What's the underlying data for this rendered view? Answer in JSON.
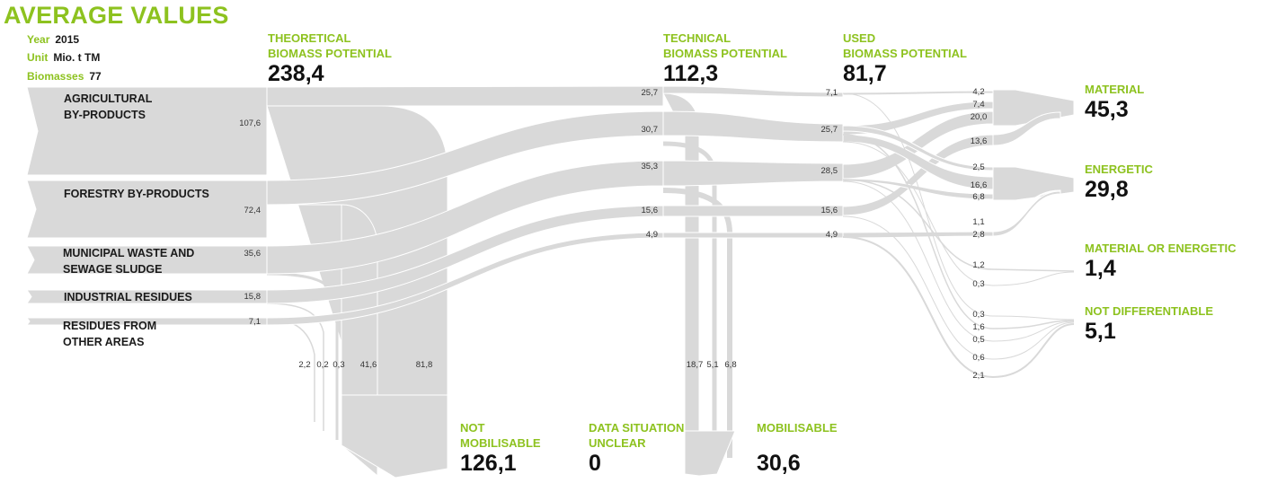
{
  "header": {
    "title": "AVERAGE VALUES",
    "year_key": "Year",
    "year_value": "2015",
    "unit_key": "Unit",
    "unit_value": "Mio. t TM",
    "biomasses_key": "Biomasses",
    "biomasses_value": "77"
  },
  "stages": {
    "theoretical": {
      "line1": "THEORETICAL",
      "line2": "BIOMASS POTENTIAL",
      "value": "238,4"
    },
    "technical": {
      "line1": "TECHNICAL",
      "line2": "BIOMASS POTENTIAL",
      "value": "112,3"
    },
    "used": {
      "line1": "USED",
      "line2": "BIOMASS POTENTIAL",
      "value": "81,7"
    }
  },
  "sources": [
    {
      "line1": "AGRICULTURAL",
      "line2": "BY-PRODUCTS",
      "value": "107,6"
    },
    {
      "line1": "FORESTRY BY-PRODUCTS",
      "line2": "",
      "value": "72,4"
    },
    {
      "line1": "MUNICIPAL WASTE AND",
      "line2": "SEWAGE SLUDGE",
      "value": "35,6"
    },
    {
      "line1": "INDUSTRIAL RESIDUES",
      "line2": "",
      "value": "15,8"
    },
    {
      "line1": "RESIDUES FROM",
      "line2": "OTHER AREAS",
      "value": "7,1"
    }
  ],
  "technical_values": [
    "25,7",
    "30,7",
    "35,3",
    "15,6",
    "4,9"
  ],
  "used_values": [
    "7,1",
    "25,7",
    "28,5",
    "15,6",
    "4,9"
  ],
  "not_mobilisable_values": [
    "2,2",
    "0,2",
    "0,3",
    "41,6",
    "81,8"
  ],
  "mobilisable_values": [
    "18,7",
    "5,1",
    "6,8"
  ],
  "outputs": {
    "material": {
      "label": "MATERIAL",
      "value": "45,3"
    },
    "energetic": {
      "label": "ENERGETIC",
      "value": "29,8"
    },
    "material_or_energetic": {
      "label": "MATERIAL OR ENERGETIC",
      "value": "1,4"
    },
    "not_differentiable": {
      "label": "NOT DIFFERENTIABLE",
      "value": "5,1"
    }
  },
  "bottom": {
    "not_mobilisable": {
      "line1": "NOT",
      "line2": "MOBILISABLE",
      "value": "126,1"
    },
    "data_unclear": {
      "line1": "DATA SITUATION",
      "line2": "UNCLEAR",
      "value": "0"
    },
    "mobilisable": {
      "line1": "MOBILISABLE",
      "value": "30,6"
    }
  },
  "usage_labels": [
    {
      "text": "4,2"
    },
    {
      "text": "7,4"
    },
    {
      "text": "20,0"
    },
    {
      "text": "13,6"
    },
    {
      "text": "2,5"
    },
    {
      "text": "16,6"
    },
    {
      "text": "6,8"
    },
    {
      "text": "1,1"
    },
    {
      "text": "2,8"
    },
    {
      "text": "1,2"
    },
    {
      "text": "0,3"
    },
    {
      "text": "0,3"
    },
    {
      "text": "1,6"
    },
    {
      "text": "0,5"
    },
    {
      "text": "0,6"
    },
    {
      "text": "2,1"
    }
  ],
  "colors": {
    "accent": "#8dc21f",
    "flow": "#d9d9d9",
    "flow_edge": "#ffffff"
  }
}
